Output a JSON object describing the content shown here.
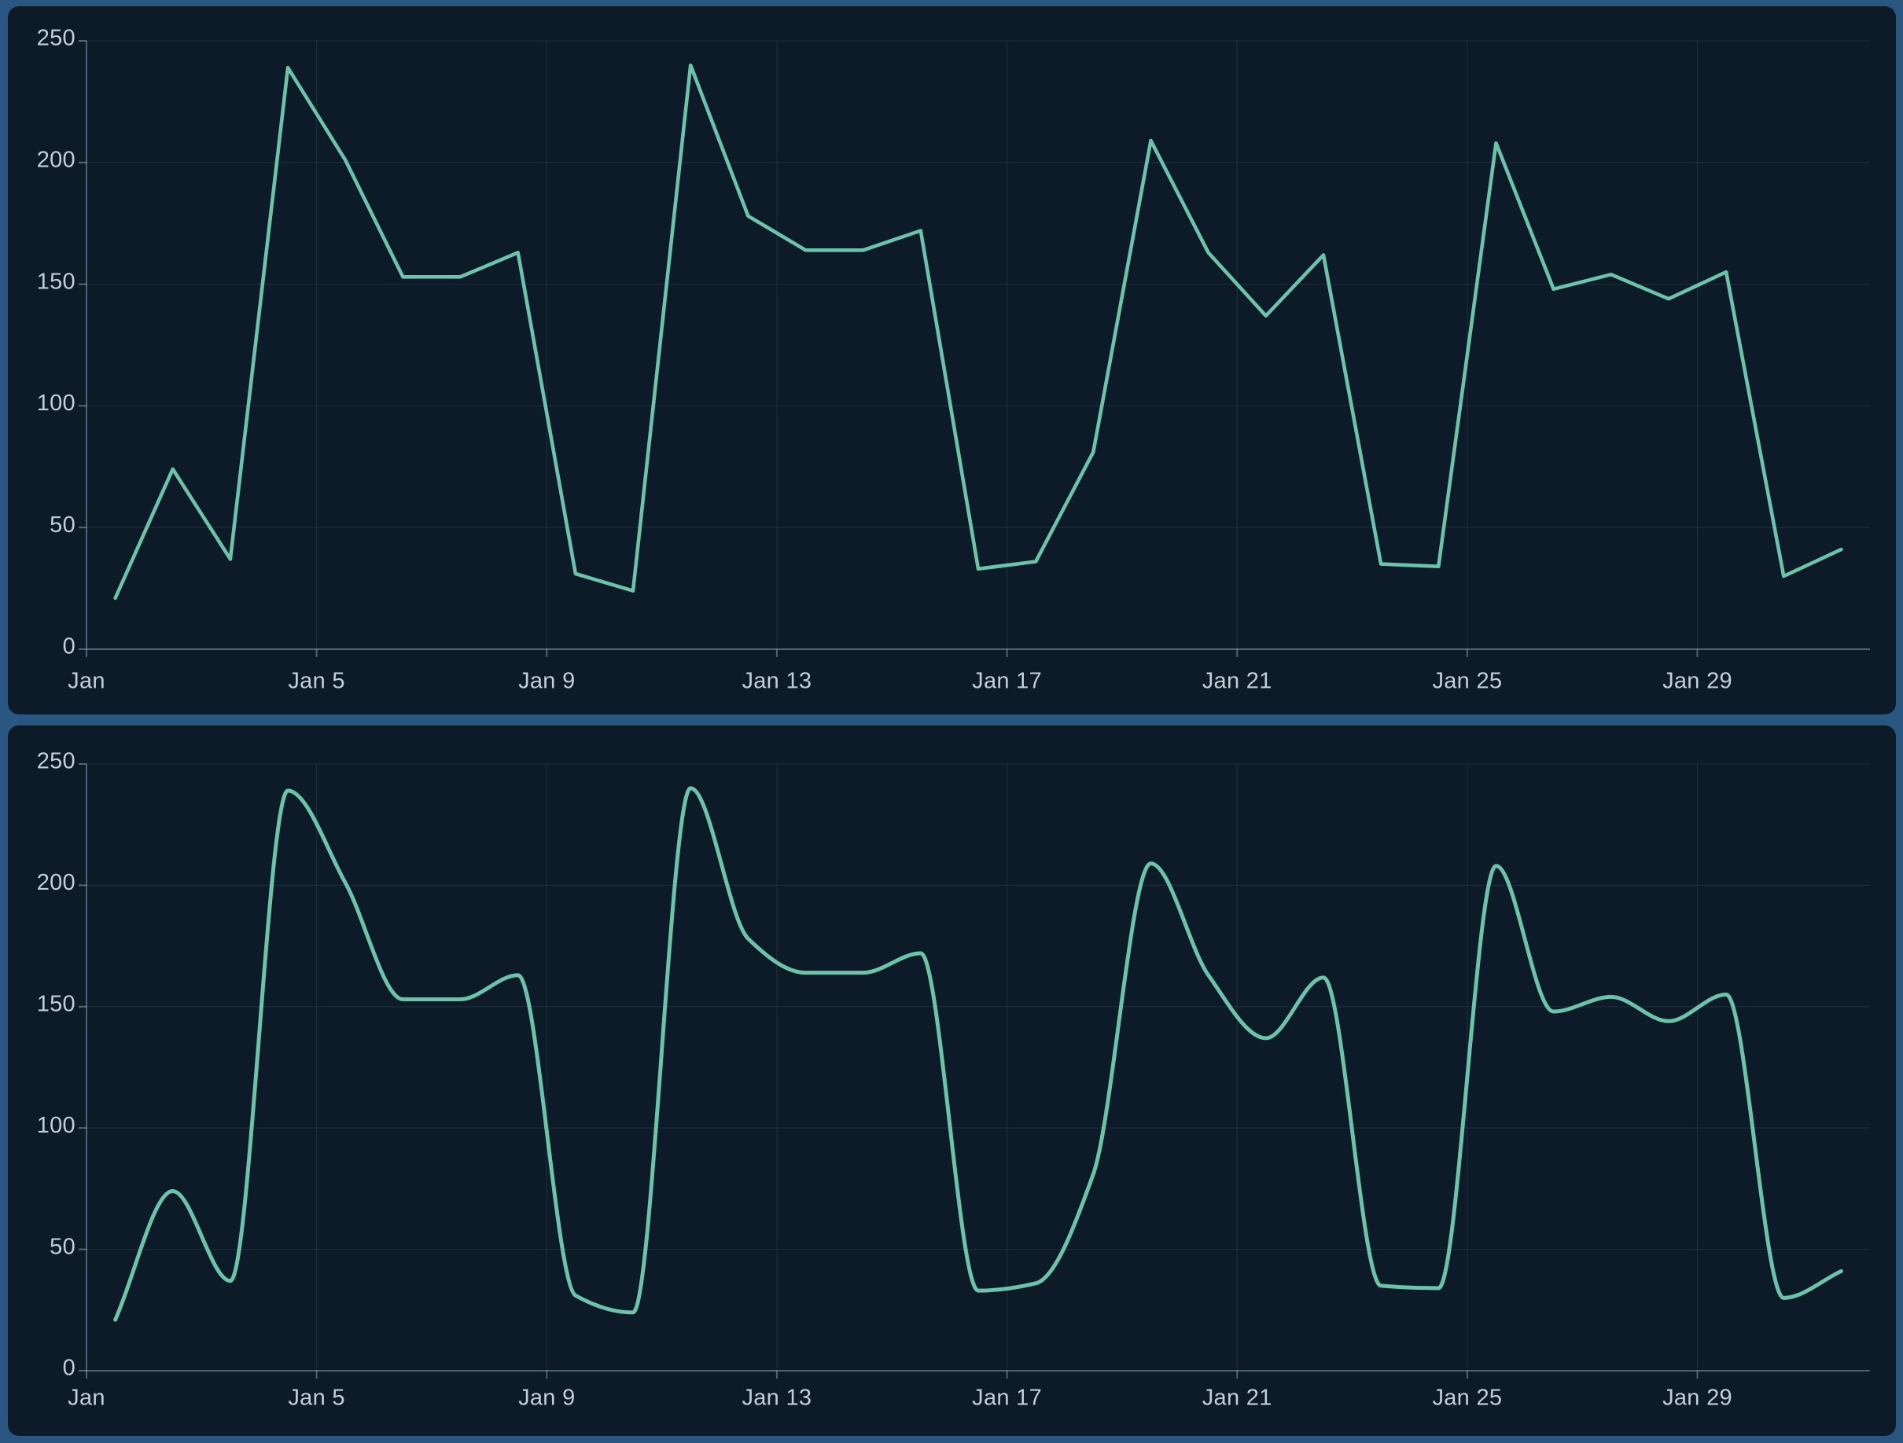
{
  "page": {
    "background_color": "#2a5682",
    "panel_color": "#0c1b27",
    "panel_gap_divider": true
  },
  "colors": {
    "line": "#6dc2ab",
    "axis": "rgba(163,186,208,0.45)",
    "grid": "rgba(163,186,208,0.10)",
    "label": "#c5ced7",
    "page_background": "#2a5682",
    "panel_background": "#0c1b27"
  },
  "axes": {
    "y_ticks": [
      0,
      50,
      100,
      150,
      200,
      250
    ],
    "x_ticks": [
      {
        "day": 1,
        "label": "Jan"
      },
      {
        "day": 5,
        "label": "Jan 5"
      },
      {
        "day": 9,
        "label": "Jan 9"
      },
      {
        "day": 13,
        "label": "Jan 13"
      },
      {
        "day": 17,
        "label": "Jan 17"
      },
      {
        "day": 21,
        "label": "Jan 21"
      },
      {
        "day": 25,
        "label": "Jan 25"
      },
      {
        "day": 29,
        "label": "Jan 29"
      }
    ]
  },
  "chart_data": [
    {
      "type": "line",
      "title": "",
      "interpolation": "linear",
      "xlabel": "",
      "ylabel": "",
      "ylim": [
        0,
        250
      ],
      "y_ticks": [
        0,
        50,
        100,
        150,
        200,
        250
      ],
      "x_tick_labels": [
        "Jan",
        "Jan 5",
        "Jan 9",
        "Jan 13",
        "Jan 17",
        "Jan 21",
        "Jan 25",
        "Jan 29"
      ],
      "grid": true,
      "legend": false,
      "line_color": "#6dc2ab",
      "categories": [
        "Jan 1",
        "Jan 2",
        "Jan 3",
        "Jan 4",
        "Jan 5",
        "Jan 6",
        "Jan 7",
        "Jan 8",
        "Jan 9",
        "Jan 10",
        "Jan 11",
        "Jan 12",
        "Jan 13",
        "Jan 14",
        "Jan 15",
        "Jan 16",
        "Jan 17",
        "Jan 18",
        "Jan 19",
        "Jan 20",
        "Jan 21",
        "Jan 22",
        "Jan 23",
        "Jan 24",
        "Jan 25",
        "Jan 26",
        "Jan 27",
        "Jan 28",
        "Jan 29",
        "Jan 30",
        "Jan 31"
      ],
      "values": [
        21,
        74,
        37,
        239,
        201,
        153,
        153,
        163,
        31,
        24,
        240,
        178,
        164,
        164,
        172,
        33,
        36,
        81,
        209,
        163,
        137,
        162,
        35,
        34,
        208,
        148,
        154,
        144,
        155,
        30,
        41
      ]
    },
    {
      "type": "line",
      "title": "",
      "interpolation": "smooth",
      "xlabel": "",
      "ylabel": "",
      "ylim": [
        0,
        250
      ],
      "y_ticks": [
        0,
        50,
        100,
        150,
        200,
        250
      ],
      "x_tick_labels": [
        "Jan",
        "Jan 5",
        "Jan 9",
        "Jan 13",
        "Jan 17",
        "Jan 21",
        "Jan 25",
        "Jan 29"
      ],
      "grid": true,
      "legend": false,
      "line_color": "#6dc2ab",
      "categories": [
        "Jan 1",
        "Jan 2",
        "Jan 3",
        "Jan 4",
        "Jan 5",
        "Jan 6",
        "Jan 7",
        "Jan 8",
        "Jan 9",
        "Jan 10",
        "Jan 11",
        "Jan 12",
        "Jan 13",
        "Jan 14",
        "Jan 15",
        "Jan 16",
        "Jan 17",
        "Jan 18",
        "Jan 19",
        "Jan 20",
        "Jan 21",
        "Jan 22",
        "Jan 23",
        "Jan 24",
        "Jan 25",
        "Jan 26",
        "Jan 27",
        "Jan 28",
        "Jan 29",
        "Jan 30",
        "Jan 31"
      ],
      "values": [
        21,
        74,
        37,
        239,
        201,
        153,
        153,
        163,
        31,
        24,
        240,
        178,
        164,
        164,
        172,
        33,
        36,
        81,
        209,
        163,
        137,
        162,
        35,
        34,
        208,
        148,
        154,
        144,
        155,
        30,
        41
      ]
    }
  ]
}
